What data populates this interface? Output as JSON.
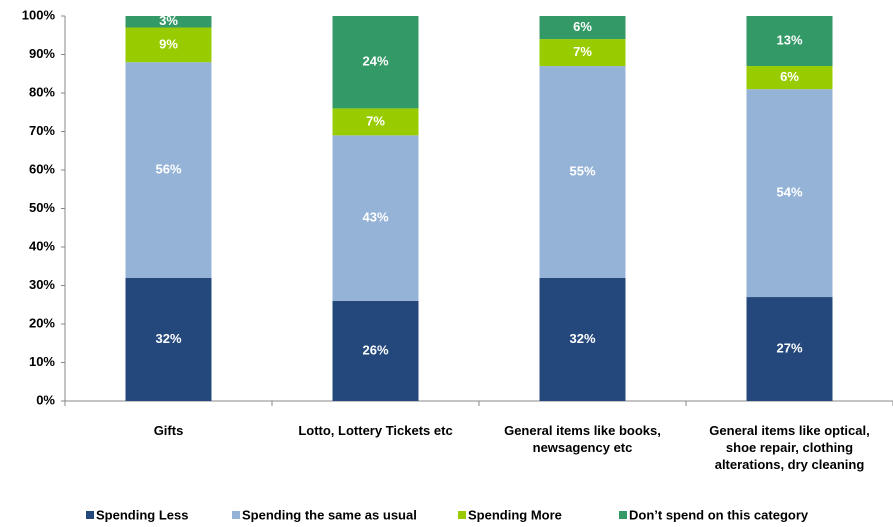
{
  "chart_data": {
    "type": "stacked_bar",
    "categories": [
      "Gifts",
      "Lotto, Lottery Tickets etc",
      "General items like books, newsagency etc",
      "General items like optical, shoe repair, clothing alterations, dry cleaning"
    ],
    "series": [
      {
        "name": "Spending Less",
        "color": "#24487c",
        "values": [
          32,
          26,
          32,
          27
        ],
        "value_labels": [
          "32%",
          "26%",
          "32%",
          "27%"
        ]
      },
      {
        "name": "Spending the same as usual",
        "color": "#95b3d7",
        "values": [
          56,
          43,
          55,
          54
        ],
        "value_labels": [
          "56%",
          "43%",
          "55%",
          "54%"
        ]
      },
      {
        "name": "Spending More",
        "color": "#99cc00",
        "values": [
          9,
          7,
          7,
          6
        ],
        "value_labels": [
          "9%",
          "7%",
          "7%",
          "6%"
        ]
      },
      {
        "name": "Don’t spend on this category",
        "color": "#339966",
        "values": [
          3,
          24,
          6,
          13
        ],
        "value_labels": [
          "3%",
          "24%",
          "6%",
          "13%"
        ]
      }
    ],
    "ylim": [
      0,
      100
    ],
    "yticks": [
      {
        "value": 0,
        "label": "0%"
      },
      {
        "value": 10,
        "label": "10%"
      },
      {
        "value": 20,
        "label": "20%"
      },
      {
        "value": 30,
        "label": "30%"
      },
      {
        "value": 40,
        "label": "40%"
      },
      {
        "value": 50,
        "label": "50%"
      },
      {
        "value": 60,
        "label": "60%"
      },
      {
        "value": 70,
        "label": "70%"
      },
      {
        "value": 80,
        "label": "80%"
      },
      {
        "value": 90,
        "label": "90%"
      },
      {
        "value": 100,
        "label": "100%"
      }
    ],
    "grid": false,
    "legend": "bottom"
  }
}
